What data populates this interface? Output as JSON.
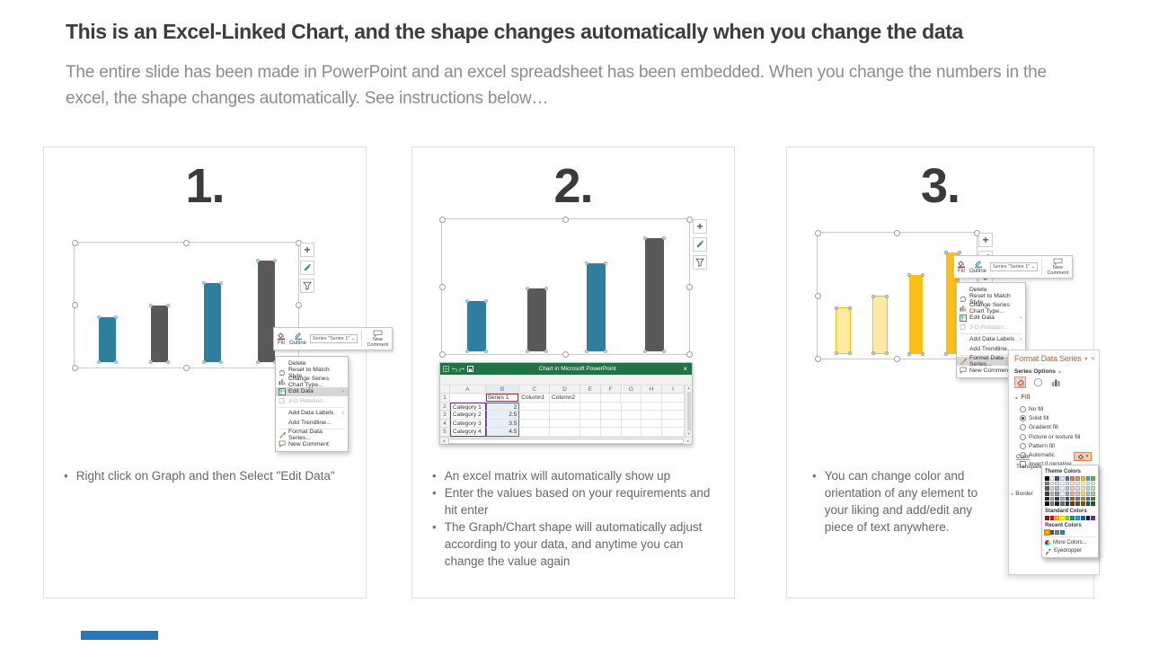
{
  "slide": {
    "title": "This is an Excel-Linked Chart, and the shape changes automatically when you change the data",
    "subtitle": "The entire slide has been made in PowerPoint and an excel spreadsheet has been embedded. When you change the numbers in the excel, the shape changes automatically. See instructions below…"
  },
  "colors": {
    "teal": "#2e7e9e",
    "gray": "#595959",
    "yellow_solid": "#fcbf18",
    "yellow_light": "#ffe9a3",
    "yellow_border": "#ffc000",
    "excel_green": "#217346",
    "accent_blue": "#2e75b6",
    "menu_highlight": "#d6d6d6",
    "fmt_title_orange": "#cd5b2a"
  },
  "steps": [
    {
      "number": "1.",
      "bullets": [
        "Right click on Graph and then Select \"Edit Data\""
      ]
    },
    {
      "number": "2.",
      "bullets": [
        "An excel matrix will automatically show up",
        "Enter the values based on your requirements and hit enter",
        "The Graph/Chart shape will automatically adjust according to your data, and anytime you can change the value again"
      ]
    },
    {
      "number": "3.",
      "bullets": [
        "You can change color and orientation of any element to your liking and add/edit any piece of text anywhere."
      ]
    }
  ],
  "chart_data": {
    "type": "bar",
    "categories": [
      "Category 1",
      "Category 2",
      "Category 3",
      "Category 4"
    ],
    "series": [
      {
        "name": "Series 1",
        "values": [
          2,
          2.5,
          3.5,
          4.5
        ]
      }
    ],
    "title": "",
    "xlabel": "",
    "ylabel": "",
    "legend": "none",
    "grid": "off",
    "step1_bar_colors": [
      "#2e7e9e",
      "#595959",
      "#2e7e9e",
      "#595959"
    ],
    "step3_bar_colors": [
      "#ffe9a3",
      "#ffe9a3",
      "#fcbf18",
      "#fcbf18"
    ]
  },
  "chart_side_buttons": [
    {
      "name": "chart-elements-button",
      "icon": "plus-icon"
    },
    {
      "name": "chart-styles-button",
      "icon": "brush-icon"
    },
    {
      "name": "chart-filters-button",
      "icon": "funnel-icon"
    }
  ],
  "mini_toolbar": {
    "fill_label": "Fill",
    "outline_label": "Outline",
    "series_label": "Series \"Series 1\"",
    "series_caret": "⌄",
    "comment_label": "New Comment"
  },
  "context_menu": {
    "items": [
      {
        "label": "Delete",
        "icon": "",
        "submenu": false,
        "disabled": false
      },
      {
        "label": "Reset to Match Style",
        "icon": "reset-icon",
        "submenu": false,
        "disabled": false
      },
      {
        "label": "Change Series Chart Type...",
        "icon": "chart-type-icon",
        "submenu": false,
        "disabled": false
      },
      {
        "label": "Edit Data",
        "icon": "edit-data-icon",
        "submenu": true,
        "disabled": false
      },
      {
        "label": "3-D Rotation...",
        "icon": "rotation-icon",
        "submenu": false,
        "disabled": true
      },
      {
        "label": "Add Data Labels",
        "icon": "",
        "submenu": true,
        "disabled": false
      },
      {
        "label": "Add Trendline...",
        "icon": "",
        "submenu": false,
        "disabled": false
      },
      {
        "label": "Format Data Series...",
        "icon": "format-icon",
        "submenu": false,
        "disabled": false
      },
      {
        "label": "New Comment",
        "icon": "comment-icon",
        "submenu": false,
        "disabled": false
      }
    ],
    "step1_highlight": "Edit Data",
    "step3_highlight": "Format Data Series..."
  },
  "excel_window": {
    "title": "Chart in Microsoft PowerPoint",
    "close_label": "×",
    "column_headers": [
      "A",
      "B",
      "C",
      "D",
      "E",
      "F",
      "G",
      "H",
      "I"
    ],
    "rows": [
      {
        "num": "1",
        "cells": [
          "",
          "Series 1",
          "Column1",
          "Column2",
          "",
          "",
          "",
          "",
          ""
        ]
      },
      {
        "num": "2",
        "cells": [
          "Category 1",
          "2",
          "",
          "",
          "",
          "",
          "",
          "",
          ""
        ]
      },
      {
        "num": "3",
        "cells": [
          "Category 2",
          "2.5",
          "",
          "",
          "",
          "",
          "",
          "",
          ""
        ]
      },
      {
        "num": "4",
        "cells": [
          "Category 3",
          "3.5",
          "",
          "",
          "",
          "",
          "",
          "",
          ""
        ]
      },
      {
        "num": "5",
        "cells": [
          "Category 4",
          "4.5",
          "",
          "",
          "",
          "",
          "",
          "",
          ""
        ]
      }
    ]
  },
  "format_panel": {
    "title": "Format Data Series",
    "collapse_glyph": "▾",
    "close_glyph": "✕",
    "series_options_label": "Series Options",
    "series_options_caret": "⌄",
    "fill_section_label": "Fill",
    "fill_section_glyph": "▲",
    "options": [
      {
        "label": "No fill",
        "type": "radio",
        "checked": false
      },
      {
        "label": "Solid fill",
        "type": "radio",
        "checked": true
      },
      {
        "label": "Gradient fill",
        "type": "radio",
        "checked": false
      },
      {
        "label": "Picture or texture fill",
        "type": "radio",
        "checked": false
      },
      {
        "label": "Pattern fill",
        "type": "radio",
        "checked": false
      },
      {
        "label": "Automatic",
        "type": "radio",
        "checked": false
      },
      {
        "label": "Invert if negative",
        "type": "checkbox",
        "checked": false
      }
    ],
    "color_label": "Color",
    "transparency_label": "Transparen",
    "border_label": "Border",
    "border_glyph": "▸",
    "color_dropdown": {
      "theme_colors_label": "Theme Colors",
      "theme_colors": [
        "#000000",
        "#ffffff",
        "#44546a",
        "#e7e6e6",
        "#4472c4",
        "#ed7d31",
        "#a5a5a5",
        "#ffc000",
        "#5b9bd5",
        "#70ad47"
      ],
      "standard_colors_label": "Standard Colors",
      "standard_colors": [
        "#c00000",
        "#ff0000",
        "#ffc000",
        "#ffff00",
        "#92d050",
        "#00b050",
        "#00b0f0",
        "#0070c0",
        "#002060",
        "#7030a0"
      ],
      "recent_colors_label": "Recent Colors",
      "recent_colors": [
        "#ffc000",
        "#595959",
        "#808080",
        "#31859c"
      ],
      "more_colors_label": "More Colors...",
      "eyedropper_label": "Eyedropper"
    }
  }
}
